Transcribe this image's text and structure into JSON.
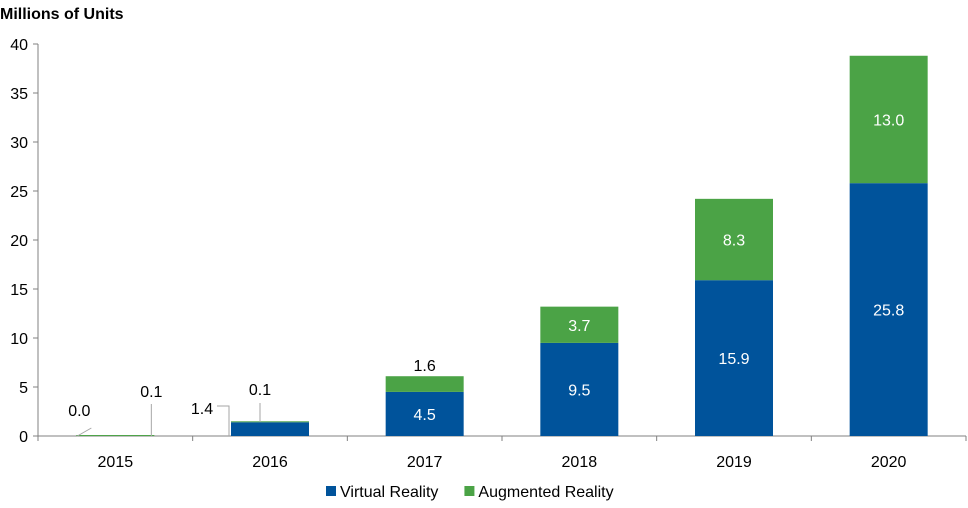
{
  "chart_data": {
    "type": "bar",
    "stacked": true,
    "ylabel": "Millions of Units",
    "ylim": [
      0,
      40
    ],
    "yticks": [
      0,
      5,
      10,
      15,
      20,
      25,
      30,
      35,
      40
    ],
    "categories": [
      "2015",
      "2016",
      "2017",
      "2018",
      "2019",
      "2020"
    ],
    "series": [
      {
        "name": "Virtual Reality",
        "color": "#00539b",
        "values": [
          0.0,
          1.4,
          4.5,
          9.5,
          15.9,
          25.8
        ],
        "labels": [
          "0.0",
          "1.4",
          "4.5",
          "9.5",
          "15.9",
          "25.8"
        ]
      },
      {
        "name": "Augmented Reality",
        "color": "#4ba346",
        "values": [
          0.1,
          0.1,
          1.6,
          3.7,
          8.3,
          13.0
        ],
        "labels": [
          "0.1",
          "0.1",
          "1.6",
          "3.7",
          "8.3",
          "13.0"
        ]
      }
    ],
    "legend": "bottom-center",
    "grid": false
  }
}
